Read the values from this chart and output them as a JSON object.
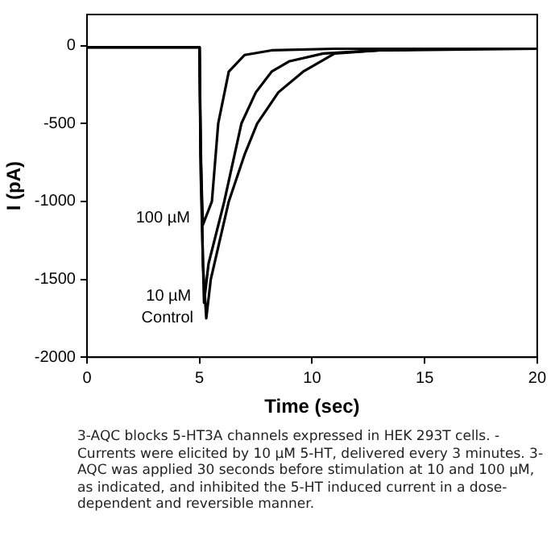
{
  "chart_data": {
    "type": "line",
    "xlabel": "Time (sec)",
    "ylabel": "I (pA)",
    "xlim": [
      0,
      20
    ],
    "xticks": [
      0,
      5,
      10,
      15,
      20
    ],
    "ylim": [
      -2000,
      200
    ],
    "yticks": [
      -2000,
      -1500,
      -1000,
      -500,
      0
    ],
    "grid": false,
    "legend": false,
    "marker": "none",
    "line_style": "solid",
    "series": [
      {
        "name": "100 µM",
        "color": "#000000",
        "x": [
          0,
          5,
          5.05,
          5.15,
          5.55,
          5.83,
          6.3,
          7,
          8.2,
          11,
          20
        ],
        "values": [
          -10,
          -10,
          -700,
          -1150,
          -1000,
          -500,
          -167,
          -60,
          -30,
          -20,
          -20
        ]
      },
      {
        "name": "10 µM",
        "color": "#000000",
        "x": [
          0,
          5,
          5.05,
          5.2,
          5.4,
          6.1,
          6.86,
          7.5,
          8.2,
          9,
          10.5,
          13,
          20
        ],
        "values": [
          -10,
          -10,
          -800,
          -1650,
          -1400,
          -1000,
          -500,
          -300,
          -167,
          -100,
          -50,
          -30,
          -20
        ]
      },
      {
        "name": "Control",
        "color": "#000000",
        "x": [
          0,
          5,
          5.05,
          5.15,
          5.3,
          5.5,
          6.3,
          7,
          7.56,
          8.5,
          9.6,
          11,
          13,
          16,
          20
        ],
        "values": [
          -10,
          -10,
          -600,
          -1400,
          -1750,
          -1500,
          -1000,
          -700,
          -500,
          -300,
          -167,
          -50,
          -30,
          -20,
          -20
        ]
      }
    ],
    "annotations": [
      "3-AQC blocks 5-HT3A channels expressed in HEK 293T cells.  - Currents were elicited by 10 µM 5-HT, delivered every 3 minutes. 3-AQC was applied 30 seconds before stimulation at 10 and 100 µM, as indicated, and inhibited the 5-HT induced current in a dose-dependent and reversible manner."
    ]
  }
}
